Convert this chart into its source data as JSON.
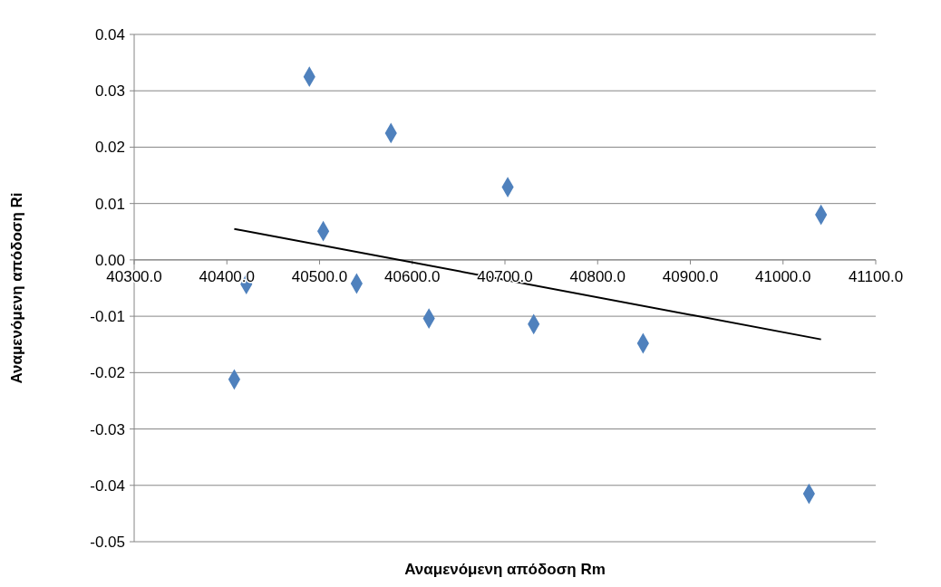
{
  "chart_data": {
    "type": "scatter",
    "xlabel": "Αναμενόμενη απόδοση  Rm",
    "ylabel": "Αναμενόμενη  απόδοση Ri",
    "xlim": [
      40300,
      41100
    ],
    "xticks": [
      {
        "value": 40300,
        "label": "40300.0"
      },
      {
        "value": 40400,
        "label": "40400.0"
      },
      {
        "value": 40500,
        "label": "40500.0"
      },
      {
        "value": 40600,
        "label": "40600.0"
      },
      {
        "value": 40700,
        "label": "40700.0"
      },
      {
        "value": 40800,
        "label": "40800.0"
      },
      {
        "value": 40900,
        "label": "40900.0"
      },
      {
        "value": 41000,
        "label": "41000.0"
      },
      {
        "value": 41100,
        "label": "41100.0"
      }
    ],
    "ylim": [
      -0.05,
      0.04
    ],
    "yticks": [
      {
        "value": 0.04,
        "label": "0.04"
      },
      {
        "value": 0.03,
        "label": "0.03"
      },
      {
        "value": 0.02,
        "label": "0.02"
      },
      {
        "value": 0.01,
        "label": "0.01"
      },
      {
        "value": 0,
        "label": "0.00"
      },
      {
        "value": -0.01,
        "label": "-0.01"
      },
      {
        "value": -0.02,
        "label": "-0.02"
      },
      {
        "value": -0.03,
        "label": "-0.03"
      },
      {
        "value": -0.04,
        "label": "-0.04"
      },
      {
        "value": -0.05,
        "label": "-0.05"
      }
    ],
    "grid": "y",
    "marker": "diamond",
    "series": [
      {
        "color": "#4f81bd",
        "x": [
          40408,
          40421,
          40489,
          40504,
          40540,
          40577,
          40618,
          40703,
          40731,
          40849,
          41028,
          41041
        ],
        "values": [
          -0.0212,
          -0.0043,
          0.0325,
          0.0051,
          -0.0042,
          0.0225,
          -0.0104,
          0.0129,
          -0.0114,
          -0.0148,
          -0.0415,
          0.008
        ]
      },
      {
        "type": "line",
        "marker": "none",
        "color": "#000000",
        "x": [
          40408,
          41041
        ],
        "values": [
          0.0055,
          -0.0141
        ]
      }
    ]
  }
}
